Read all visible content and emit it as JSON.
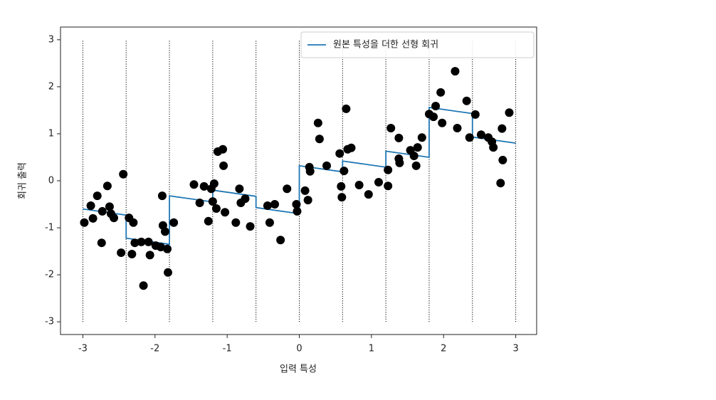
{
  "chart_data": {
    "type": "line",
    "xlabel": "입력 특성",
    "ylabel": "회귀 출력",
    "xlim": [
      -3.31,
      3.29
    ],
    "ylim": [
      -3.27,
      3.27
    ],
    "xticks": [
      -3,
      -2,
      -1,
      0,
      1,
      2,
      3
    ],
    "yticks": [
      -3,
      -2,
      -1,
      0,
      1,
      2,
      3
    ],
    "legend": "upper right",
    "bins": [
      -3,
      -2.4,
      -1.8,
      -1.2,
      -0.6,
      0,
      0.6,
      1.2,
      1.8,
      2.4,
      3
    ],
    "bin_line_range": [
      -3,
      3
    ],
    "series": [
      {
        "name": "원본 특성을 더한 선형 회귀",
        "color": "#1f77b4",
        "x": [
          -3,
          -2.4,
          -2.4,
          -1.8,
          -1.8,
          -1.2,
          -1.2,
          -0.6,
          -0.6,
          0,
          0,
          0.6,
          0.6,
          1.2,
          1.2,
          1.8,
          1.8,
          2.4,
          2.4,
          3
        ],
        "values": [
          -0.6,
          -0.73,
          -1.22,
          -1.35,
          -0.32,
          -0.45,
          -0.2,
          -0.33,
          -0.57,
          -0.7,
          0.32,
          0.19,
          0.42,
          0.29,
          0.63,
          0.5,
          1.56,
          1.43,
          0.93,
          0.8
        ]
      }
    ],
    "points": {
      "color": "#000000",
      "x": [
        -2.98,
        -2.89,
        -2.86,
        -2.8,
        -2.74,
        -2.73,
        -2.66,
        -2.63,
        -2.61,
        -2.57,
        -2.47,
        -2.44,
        -2.36,
        -2.32,
        -2.3,
        -2.28,
        -2.19,
        -2.16,
        -2.09,
        -2.07,
        -1.99,
        -1.92,
        -1.9,
        -1.89,
        -1.86,
        -1.83,
        -1.82,
        -1.74,
        -1.46,
        -1.38,
        -1.32,
        -1.26,
        -1.22,
        -1.2,
        -1.18,
        -1.15,
        -1.13,
        -1.06,
        -1.05,
        -1.03,
        -0.88,
        -0.83,
        -0.81,
        -0.75,
        -0.68,
        -0.44,
        -0.41,
        -0.34,
        -0.26,
        -0.17,
        -0.04,
        -0.03,
        0.08,
        0.12,
        0.14,
        0.15,
        0.26,
        0.28,
        0.38,
        0.56,
        0.58,
        0.59,
        0.62,
        0.65,
        0.67,
        0.72,
        0.83,
        0.96,
        1.1,
        1.23,
        1.23,
        1.27,
        1.38,
        1.38,
        1.39,
        1.54,
        1.59,
        1.62,
        1.64,
        1.7,
        1.8,
        1.86,
        1.89,
        1.96,
        1.98,
        2.16,
        2.19,
        2.32,
        2.36,
        2.44,
        2.52,
        2.62,
        2.67,
        2.69,
        2.79,
        2.81,
        2.82,
        2.91
      ],
      "y": [
        -0.89,
        -0.53,
        -0.8,
        -0.32,
        -1.32,
        -0.65,
        -0.11,
        -0.55,
        -0.7,
        -0.79,
        -1.53,
        0.14,
        -0.79,
        -1.56,
        -0.89,
        -1.32,
        -1.3,
        -2.23,
        -1.3,
        -1.58,
        -1.38,
        -1.41,
        -0.32,
        -0.95,
        -1.08,
        -1.45,
        -1.95,
        -0.89,
        -0.08,
        -0.47,
        -0.12,
        -0.86,
        -0.17,
        -0.44,
        -0.06,
        -0.59,
        0.62,
        0.67,
        0.32,
        -0.67,
        -0.89,
        -0.17,
        -0.47,
        -0.38,
        -0.97,
        -0.53,
        -0.89,
        -0.5,
        -1.26,
        -0.17,
        -0.5,
        -0.65,
        -0.21,
        -0.41,
        0.29,
        0.2,
        1.23,
        0.89,
        0.32,
        0.58,
        -0.12,
        -0.35,
        0.21,
        1.53,
        0.67,
        0.7,
        -0.09,
        -0.29,
        -0.03,
        0.23,
        -0.11,
        1.12,
        0.91,
        0.47,
        0.38,
        0.65,
        0.53,
        0.32,
        0.71,
        0.92,
        1.42,
        1.36,
        1.59,
        1.88,
        1.23,
        2.33,
        1.12,
        1.7,
        0.92,
        1.41,
        0.98,
        0.92,
        0.83,
        0.71,
        -0.05,
        1.11,
        0.44,
        1.45
      ]
    }
  }
}
